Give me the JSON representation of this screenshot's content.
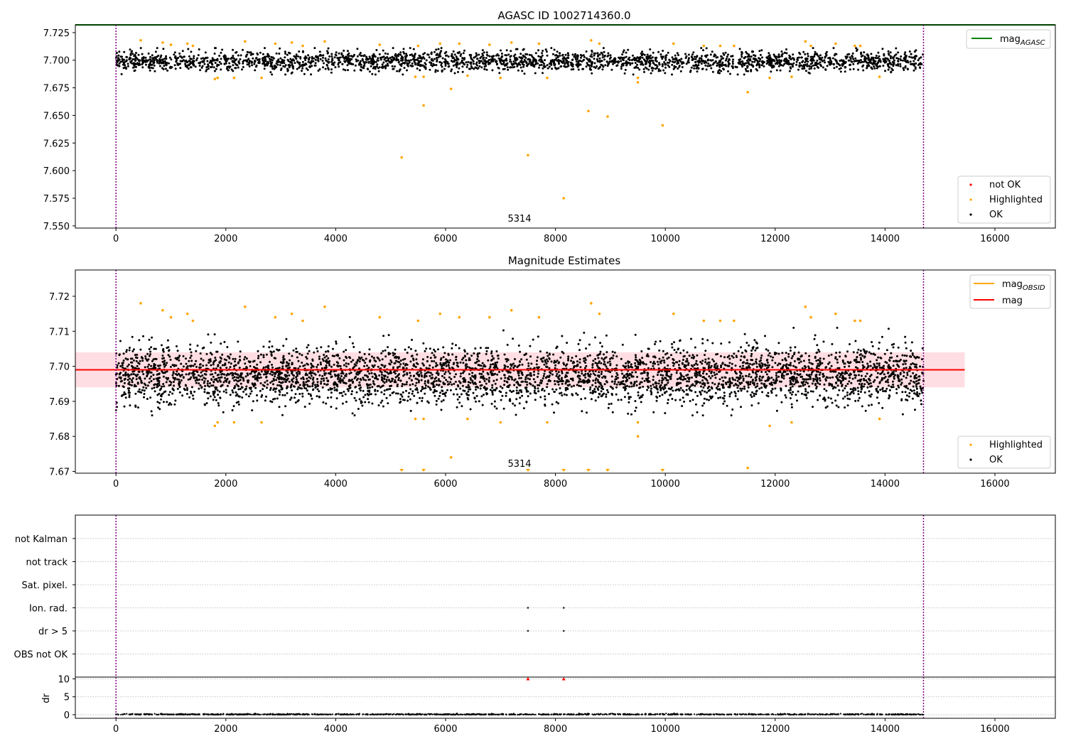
{
  "figure": {
    "suptitle": "AGASC ID 1002714360.0",
    "colors": {
      "ok": "#000000",
      "highlighted": "#ffa500",
      "not_ok": "#ff0000",
      "agasc_line": "#008000",
      "obsid_line": "#ffa500",
      "mag_line": "#ff0000",
      "mag_band": "#ffb6c1",
      "obs_boundary": "#800080",
      "grid": "#b0b0b0"
    }
  },
  "chart_data": [
    {
      "id": "agasc-panel",
      "type": "scatter",
      "title": "AGASC ID 1002714360.0",
      "xlim": [
        -740,
        17100
      ],
      "ylim": [
        7.548,
        7.732
      ],
      "xticks": [
        "0",
        "2000",
        "4000",
        "6000",
        "8000",
        "10000",
        "12000",
        "14000",
        "16000"
      ],
      "xtick_values": [
        0,
        2000,
        4000,
        6000,
        8000,
        10000,
        12000,
        14000,
        16000
      ],
      "yticks": [
        "7.550",
        "7.575",
        "7.600",
        "7.625",
        "7.650",
        "7.675",
        "7.700",
        "7.725"
      ],
      "ytick_values": [
        7.55,
        7.575,
        7.6,
        7.625,
        7.65,
        7.675,
        7.7,
        7.725
      ],
      "x_range_points": [
        0,
        14700
      ],
      "ok_band": {
        "center": 7.699,
        "core_halfwidth": 0.005,
        "spread_halfwidth": 0.012
      },
      "obs_label": {
        "text": "5314",
        "x": 7350
      },
      "obs_boundaries": [
        0,
        14700
      ],
      "agasc_mag": 7.732,
      "legends": [
        {
          "position": "upper-right",
          "entries": [
            "mag_{AGASC}"
          ]
        },
        {
          "position": "lower-right",
          "entries": [
            "not OK",
            "Highlighted",
            "OK"
          ]
        }
      ],
      "highlighted_points": [
        [
          450,
          7.718
        ],
        [
          850,
          7.716
        ],
        [
          1000,
          7.714
        ],
        [
          1300,
          7.715
        ],
        [
          1400,
          7.713
        ],
        [
          1800,
          7.683
        ],
        [
          1850,
          7.684
        ],
        [
          2150,
          7.684
        ],
        [
          2350,
          7.717
        ],
        [
          2650,
          7.684
        ],
        [
          2900,
          7.715
        ],
        [
          3200,
          7.716
        ],
        [
          3400,
          7.713
        ],
        [
          3800,
          7.717
        ],
        [
          4800,
          7.714
        ],
        [
          5200,
          7.612
        ],
        [
          5450,
          7.685
        ],
        [
          5500,
          7.713
        ],
        [
          5600,
          7.659
        ],
        [
          5600,
          7.685
        ],
        [
          5900,
          7.715
        ],
        [
          6100,
          7.674
        ],
        [
          6250,
          7.715
        ],
        [
          6400,
          7.686
        ],
        [
          6800,
          7.714
        ],
        [
          7000,
          7.684
        ],
        [
          7200,
          7.716
        ],
        [
          7500,
          7.614
        ],
        [
          7700,
          7.715
        ],
        [
          7850,
          7.684
        ],
        [
          8150,
          7.575
        ],
        [
          8600,
          7.654
        ],
        [
          8650,
          7.718
        ],
        [
          8800,
          7.715
        ],
        [
          8950,
          7.649
        ],
        [
          9500,
          7.684
        ],
        [
          9500,
          7.68
        ],
        [
          9950,
          7.641
        ],
        [
          10150,
          7.715
        ],
        [
          10700,
          7.713
        ],
        [
          11000,
          7.713
        ],
        [
          11250,
          7.713
        ],
        [
          11500,
          7.671
        ],
        [
          11900,
          7.684
        ],
        [
          12300,
          7.685
        ],
        [
          12550,
          7.717
        ],
        [
          12650,
          7.713
        ],
        [
          13100,
          7.715
        ],
        [
          13450,
          7.713
        ],
        [
          13550,
          7.713
        ],
        [
          13900,
          7.685
        ]
      ]
    },
    {
      "id": "mag-panel",
      "type": "scatter",
      "title": "Magnitude Estimates",
      "xlim": [
        -740,
        17100
      ],
      "ylim": [
        7.6695,
        7.7275
      ],
      "xticks": [
        "0",
        "2000",
        "4000",
        "6000",
        "8000",
        "10000",
        "12000",
        "14000",
        "16000"
      ],
      "xtick_values": [
        0,
        2000,
        4000,
        6000,
        8000,
        10000,
        12000,
        14000,
        16000
      ],
      "yticks": [
        "7.67",
        "7.68",
        "7.69",
        "7.70",
        "7.71",
        "7.72"
      ],
      "ytick_values": [
        7.67,
        7.68,
        7.69,
        7.7,
        7.71,
        7.72
      ],
      "x_range_points": [
        0,
        14700
      ],
      "ok_band": {
        "center": 7.699,
        "core_halfwidth": 0.004,
        "spread_halfwidth": 0.011
      },
      "mag": 7.699,
      "mag_band": [
        7.694,
        7.704
      ],
      "mag_band_x": [
        -740,
        15450
      ],
      "obs_label": {
        "text": "5314",
        "x": 7350
      },
      "obs_boundaries": [
        0,
        14700
      ],
      "legends": [
        {
          "position": "upper-right",
          "entries": [
            "mag_{OBSID}",
            "mag"
          ]
        },
        {
          "position": "lower-right",
          "entries": [
            "Highlighted",
            "OK"
          ]
        }
      ],
      "highlighted_points": [
        [
          450,
          7.718
        ],
        [
          850,
          7.716
        ],
        [
          1000,
          7.714
        ],
        [
          1300,
          7.715
        ],
        [
          1400,
          7.713
        ],
        [
          1800,
          7.683
        ],
        [
          1850,
          7.684
        ],
        [
          2150,
          7.684
        ],
        [
          2350,
          7.717
        ],
        [
          2650,
          7.684
        ],
        [
          2900,
          7.714
        ],
        [
          3200,
          7.715
        ],
        [
          3400,
          7.713
        ],
        [
          3800,
          7.717
        ],
        [
          4800,
          7.714
        ],
        [
          5450,
          7.685
        ],
        [
          5500,
          7.713
        ],
        [
          5600,
          7.685
        ],
        [
          5900,
          7.715
        ],
        [
          6100,
          7.674
        ],
        [
          6250,
          7.714
        ],
        [
          6400,
          7.685
        ],
        [
          6800,
          7.714
        ],
        [
          7000,
          7.684
        ],
        [
          7200,
          7.716
        ],
        [
          7700,
          7.714
        ],
        [
          7850,
          7.684
        ],
        [
          8650,
          7.718
        ],
        [
          8800,
          7.715
        ],
        [
          9500,
          7.684
        ],
        [
          9500,
          7.68
        ],
        [
          10150,
          7.715
        ],
        [
          10700,
          7.713
        ],
        [
          11000,
          7.713
        ],
        [
          11250,
          7.713
        ],
        [
          11500,
          7.671
        ],
        [
          11900,
          7.683
        ],
        [
          12300,
          7.684
        ],
        [
          12550,
          7.717
        ],
        [
          12650,
          7.714
        ],
        [
          13100,
          7.715
        ],
        [
          13450,
          7.713
        ],
        [
          13550,
          7.713
        ],
        [
          13900,
          7.685
        ]
      ],
      "offscale_points_x": [
        5200,
        5600,
        7500,
        8150,
        8600,
        8950,
        9950
      ]
    },
    {
      "id": "flags-panel",
      "type": "scatter",
      "xlim": [
        -740,
        17100
      ],
      "categories": [
        "not Kalman",
        "not track",
        "Sat. pixel.",
        "Ion. rad.",
        "dr > 5",
        "OBS not OK"
      ],
      "obs_boundaries": [
        0,
        14700
      ],
      "flag_points": [
        {
          "category": "Ion. rad.",
          "x": [
            7500,
            8150
          ]
        },
        {
          "category": "dr > 5",
          "x": [
            7500,
            8150
          ]
        }
      ]
    },
    {
      "id": "dr-panel",
      "type": "scatter",
      "xlim": [
        -740,
        17100
      ],
      "ylim": [
        -1,
        10.5
      ],
      "ylabel": "dr",
      "yticks": [
        "0",
        "5",
        "10"
      ],
      "ytick_values": [
        0,
        5,
        10
      ],
      "xticks": [
        "0",
        "2000",
        "4000",
        "6000",
        "8000",
        "10000",
        "12000",
        "14000",
        "16000"
      ],
      "xtick_values": [
        0,
        2000,
        4000,
        6000,
        8000,
        10000,
        12000,
        14000,
        16000
      ],
      "x_range_points": [
        0,
        14700
      ],
      "obs_boundaries": [
        0,
        14700
      ],
      "not_ok_points": [
        [
          7500,
          10
        ],
        [
          8150,
          10
        ]
      ]
    }
  ]
}
